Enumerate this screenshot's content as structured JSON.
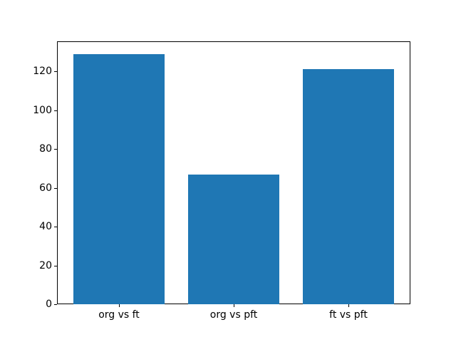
{
  "chart_data": {
    "type": "bar",
    "title": "",
    "xlabel": "",
    "ylabel": "",
    "categories": [
      "org vs ft",
      "org vs pft",
      "ft vs pft"
    ],
    "values": [
      129,
      67,
      121
    ],
    "yticks": [
      0,
      20,
      40,
      60,
      80,
      100,
      120
    ],
    "ylim": [
      0,
      135.45
    ],
    "xlim": [
      -0.54,
      2.54
    ],
    "bar_width": 0.8,
    "bar_color": "#1f77b4",
    "axis_color": "#000000",
    "text_color": "#000000",
    "background_color": "#ffffff",
    "grid": false,
    "legend": false
  }
}
